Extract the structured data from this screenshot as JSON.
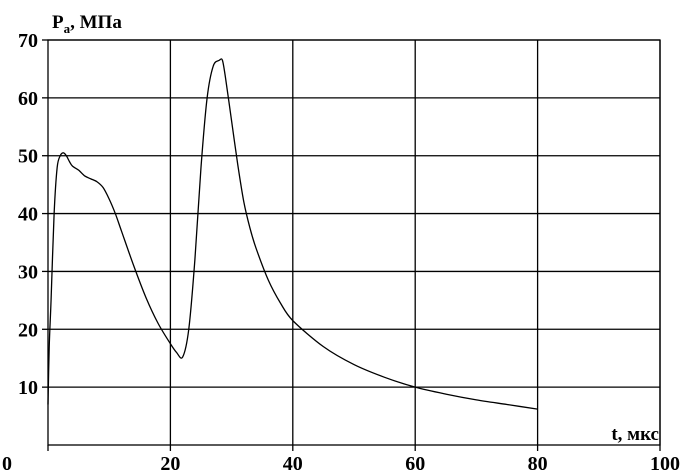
{
  "chart_data": {
    "type": "line",
    "ylabel_main": "P",
    "ylabel_sub": "a",
    "ylabel_unit": ", МПа",
    "xlabel": "t, мкс",
    "xlim": [
      0,
      100
    ],
    "ylim": [
      0,
      70
    ],
    "x_ticks": [
      "0",
      "20",
      "40",
      "60",
      "80",
      "100"
    ],
    "y_ticks": [
      "10",
      "20",
      "30",
      "40",
      "50",
      "60",
      "70"
    ],
    "grid": true,
    "series": [
      {
        "x": [
          0.0,
          0.2,
          0.5,
          1.0,
          1.5,
          2.0,
          2.5,
          3.0,
          3.5,
          4.0,
          5.0,
          6.0,
          7.0,
          8.0,
          9.0,
          10.0,
          11.0,
          12.0,
          14.0,
          16.0,
          18.0,
          20.0,
          21.0,
          22.0,
          23.0,
          24.0,
          25.0,
          26.0,
          27.0,
          28.0,
          28.5,
          29.0,
          30.0,
          31.0,
          32.0,
          33.0,
          34.0,
          36.0,
          38.0,
          40.0,
          45.0,
          50.0,
          55.0,
          60.0,
          65.0,
          70.0,
          75.0,
          80.0
        ],
        "y": [
          7,
          17,
          25,
          40,
          48,
          50,
          50.5,
          50,
          49,
          48.2,
          47.5,
          46.5,
          46,
          45.5,
          44.5,
          42.5,
          40,
          37,
          31,
          25.5,
          21,
          17.5,
          16,
          15.2,
          20,
          32,
          48,
          60,
          65.5,
          66.5,
          66.5,
          63.5,
          56,
          48.5,
          42,
          37.5,
          34,
          28.5,
          24.5,
          21.5,
          17,
          13.9,
          11.7,
          10.0,
          8.8,
          7.8,
          7.0,
          6.2
        ]
      }
    ]
  }
}
